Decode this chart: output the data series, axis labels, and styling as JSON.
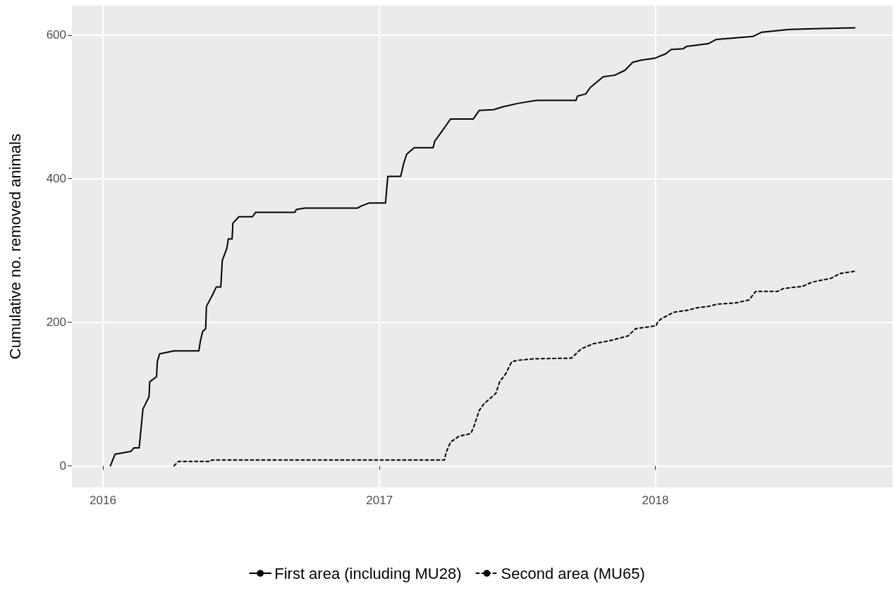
{
  "chart_data": {
    "type": "line",
    "ylabel": "Cumulative no. removed animals",
    "xlim": [
      "2015-11-21",
      "2018-11-11"
    ],
    "xticks": [
      "2016",
      "2017",
      "2018"
    ],
    "ylim": [
      -30,
      641
    ],
    "yticks": [
      0,
      200,
      400,
      600
    ],
    "grid": true,
    "legend": "bottom",
    "marker": "none",
    "x": [
      "2016-01-11",
      "2016-01-17",
      "2016-02-07",
      "2016-02-11",
      "2016-02-18",
      "2016-02-23",
      "2016-03-02",
      "2016-03-03",
      "2016-03-12",
      "2016-03-13",
      "2016-03-16",
      "2016-04-04",
      "2016-05-07",
      "2016-05-09",
      "2016-05-12",
      "2016-05-16",
      "2016-05-17",
      "2016-05-26",
      "2016-05-30",
      "2016-06-05",
      "2016-06-07",
      "2016-06-13",
      "2016-06-15",
      "2016-06-20",
      "2016-06-21",
      "2016-06-29",
      "2016-07-17",
      "2016-07-21",
      "2016-09-11",
      "2016-09-13",
      "2016-09-24",
      "2016-12-03",
      "2016-12-08",
      "2016-12-18",
      "2017-01-09",
      "2017-01-12",
      "2017-01-29",
      "2017-02-02",
      "2017-02-06",
      "2017-02-16",
      "2017-03-13",
      "2017-03-15",
      "2017-03-24",
      "2017-03-30",
      "2017-04-05",
      "2017-05-05",
      "2017-05-13",
      "2017-06-01",
      "2017-06-13",
      "2017-07-04",
      "2017-07-28",
      "2017-09-18",
      "2017-09-20",
      "2017-10-01",
      "2017-10-07",
      "2017-10-24",
      "2017-11-08",
      "2017-11-22",
      "2017-12-02",
      "2017-12-13",
      "2018-01-01",
      "2018-01-15",
      "2018-01-22",
      "2018-02-07",
      "2018-02-11",
      "2018-03-12",
      "2018-03-23",
      "2018-05-10",
      "2018-05-22",
      "2018-06-28",
      "2018-08-09",
      "2018-09-22"
    ],
    "series": [
      {
        "name": "First area (including MU28)",
        "color": "#000000",
        "line_style": "solid",
        "values": [
          0,
          16,
          20,
          25,
          25,
          79,
          96,
          117,
          124,
          145,
          156,
          160,
          160,
          174,
          187,
          191,
          222,
          240,
          249,
          249,
          286,
          303,
          316,
          316,
          338,
          347,
          347,
          353,
          353,
          357,
          359,
          359,
          362,
          366,
          366,
          403,
          403,
          421,
          434,
          443,
          443,
          452,
          465,
          474,
          483,
          483,
          495,
          496,
          500,
          505,
          509,
          509,
          515,
          518,
          527,
          542,
          544,
          551,
          562,
          565,
          568,
          574,
          580,
          581,
          584,
          588,
          594,
          598,
          604,
          608,
          609,
          610
        ]
      },
      {
        "name": "Second area (MU65)",
        "color": "#000000",
        "line_style": "dashed",
        "x": [
          "2016-04-04",
          "2016-04-10",
          "2016-05-22",
          "2016-05-24",
          "2017-03-28",
          "2017-03-30",
          "2017-04-05",
          "2017-04-16",
          "2017-05-02",
          "2017-05-06",
          "2017-05-13",
          "2017-05-19",
          "2017-06-04",
          "2017-06-09",
          "2017-06-17",
          "2017-06-25",
          "2017-07-04",
          "2017-07-24",
          "2017-09-12",
          "2017-09-25",
          "2017-10-11",
          "2017-11-01",
          "2017-11-26",
          "2017-12-06",
          "2018-01-02",
          "2018-01-04",
          "2018-01-09",
          "2018-01-26",
          "2018-02-15",
          "2018-02-24",
          "2018-03-12",
          "2018-03-23",
          "2018-04-18",
          "2018-05-05",
          "2018-05-14",
          "2018-06-12",
          "2018-06-20",
          "2018-07-15",
          "2018-07-28",
          "2018-08-21",
          "2018-09-03",
          "2018-09-22"
        ],
        "values": [
          0,
          6,
          6,
          8,
          8,
          18,
          33,
          41,
          45,
          55,
          77,
          86,
          101,
          117,
          128,
          145,
          147,
          149,
          150,
          163,
          170,
          174,
          181,
          191,
          195,
          200,
          205,
          214,
          217,
          220,
          222,
          225,
          227,
          231,
          243,
          243,
          247,
          250,
          256,
          261,
          268,
          271
        ]
      }
    ]
  }
}
